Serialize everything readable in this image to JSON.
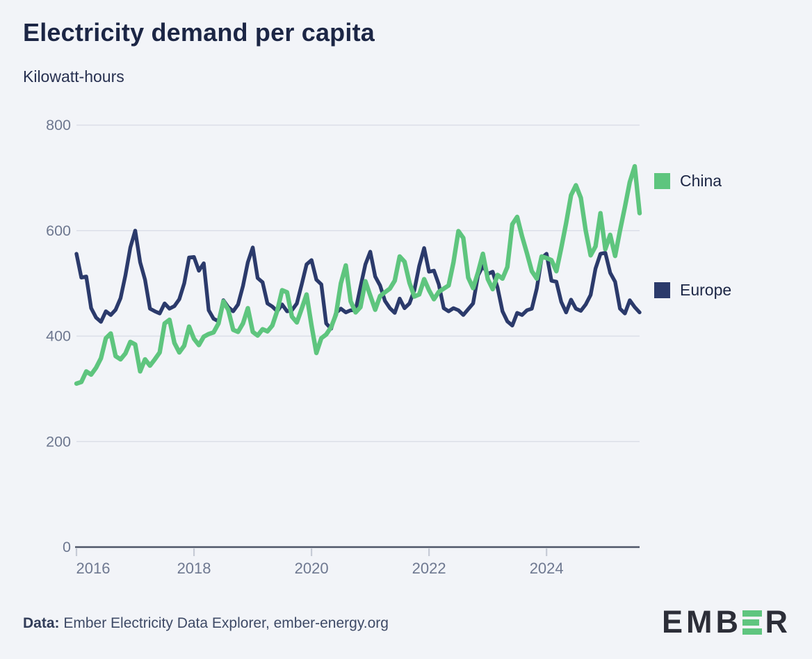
{
  "title": "Electricity demand per capita",
  "subtitle": "Kilowatt-hours",
  "legend": {
    "items": [
      {
        "label": "China",
        "color": "#5ec57e"
      },
      {
        "label": "Europe",
        "color": "#2b3a6b"
      }
    ]
  },
  "footer": {
    "prefix": "Data:",
    "text": " Ember Electricity Data Explorer, ember-energy.org"
  },
  "logo": {
    "left": "EMB",
    "right": "R"
  },
  "colors": {
    "background": "#f2f4f8",
    "grid": "#dcdfe8",
    "axis": "#4e5668",
    "tick": "#c6cbd6",
    "tick_label": "#6e7890",
    "title": "#1c2645",
    "china": "#5ec57e",
    "europe": "#2b3a6b",
    "logo_dark": "#2c2e38",
    "logo_green": "#5fc57f"
  },
  "chart_data": {
    "type": "line",
    "title": "Electricity demand per capita",
    "ylabel": "Kilowatt-hours",
    "x_start": "2016-01",
    "x_end": "2025-08",
    "frequency": "monthly",
    "xticks": [
      2016,
      2018,
      2020,
      2022,
      2024
    ],
    "yticks": [
      0,
      200,
      400,
      600,
      800
    ],
    "ylim": [
      0,
      800
    ],
    "grid": "horizontal",
    "legend_position": "right",
    "series": [
      {
        "name": "China",
        "color": "#5ec57e",
        "values": [
          310,
          313,
          333,
          327,
          340,
          358,
          396,
          405,
          362,
          356,
          367,
          389,
          384,
          333,
          356,
          344,
          356,
          369,
          424,
          431,
          387,
          369,
          382,
          418,
          395,
          383,
          399,
          404,
          407,
          424,
          466,
          450,
          412,
          408,
          424,
          453,
          408,
          401,
          413,
          409,
          420,
          448,
          487,
          483,
          437,
          426,
          452,
          479,
          420,
          368,
          396,
          403,
          417,
          441,
          500,
          534,
          466,
          445,
          455,
          504,
          477,
          450,
          476,
          483,
          490,
          505,
          551,
          541,
          501,
          475,
          479,
          508,
          487,
          470,
          484,
          490,
          496,
          540,
          599,
          586,
          511,
          491,
          521,
          556,
          508,
          489,
          516,
          509,
          531,
          612,
          626,
          589,
          557,
          523,
          509,
          551,
          548,
          544,
          523,
          567,
          614,
          667,
          686,
          662,
          600,
          553,
          570,
          633,
          565,
          592,
          552,
          600,
          645,
          692,
          722,
          633
        ]
      },
      {
        "name": "Europe",
        "color": "#2b3a6b",
        "values": [
          556,
          511,
          513,
          453,
          435,
          427,
          447,
          440,
          450,
          472,
          515,
          568,
          600,
          540,
          507,
          452,
          447,
          443,
          462,
          452,
          457,
          470,
          500,
          549,
          550,
          524,
          538,
          449,
          433,
          428,
          468,
          455,
          447,
          460,
          495,
          540,
          568,
          510,
          502,
          462,
          456,
          447,
          460,
          447,
          449,
          462,
          498,
          536,
          544,
          507,
          498,
          424,
          414,
          444,
          452,
          445,
          449,
          449,
          493,
          536,
          560,
          513,
          496,
          467,
          453,
          444,
          471,
          453,
          462,
          487,
          533,
          567,
          522,
          524,
          498,
          453,
          447,
          453,
          449,
          440,
          451,
          462,
          515,
          533,
          518,
          522,
          492,
          447,
          428,
          420,
          444,
          440,
          449,
          452,
          490,
          548,
          556,
          505,
          503,
          465,
          445,
          469,
          452,
          448,
          460,
          478,
          528,
          556,
          558,
          520,
          503,
          452,
          443,
          468,
          455,
          445
        ]
      }
    ]
  }
}
